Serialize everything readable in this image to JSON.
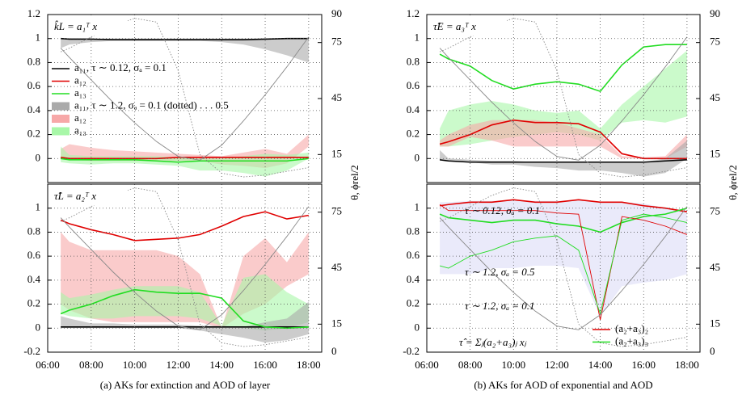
{
  "chart_data": [
    {
      "type": "line",
      "title": "k̂L = a₁ᵀ x",
      "xlim": [
        6,
        18.6
      ],
      "xticks": [
        6,
        8,
        10,
        12,
        14,
        16,
        18
      ],
      "ylim": [
        -0.2,
        1.2
      ],
      "yticks": [
        0,
        0.2,
        0.4,
        0.6,
        0.8,
        1,
        1.2
      ],
      "y2lim": [
        0,
        90
      ],
      "y2ticks": [
        15,
        45,
        75,
        90
      ],
      "y2label": "θ, ϕrel/2",
      "grid": true,
      "x": [
        6.6,
        7,
        8,
        9,
        10,
        11,
        12,
        13,
        14,
        15,
        16,
        17,
        18
      ],
      "series": [
        {
          "name": "a₁₁, τ ∼ 0.12, σₐ = 0.1",
          "color": "#000000",
          "values": [
            1,
            0.995,
            0.995,
            0.99,
            0.99,
            0.99,
            0.99,
            0.99,
            0.99,
            0.99,
            0.995,
            1,
            1
          ]
        },
        {
          "name": "a₁₂",
          "color": "#e00000",
          "values": [
            0.01,
            0,
            0,
            0,
            0,
            0,
            0.01,
            0.01,
            0.01,
            0.01,
            0.01,
            0.01,
            0.01
          ]
        },
        {
          "name": "a₁₃",
          "color": "#22dd22",
          "values": [
            0,
            -0.01,
            -0.01,
            -0.01,
            -0.01,
            -0.02,
            -0.03,
            -0.02,
            -0.02,
            -0.02,
            -0.02,
            -0.02,
            0
          ]
        },
        {
          "color": "#888888",
          "axis": "y2",
          "values": [
            72,
            67,
            55,
            43,
            32,
            22,
            14,
            12,
            20,
            33,
            47,
            62,
            78
          ]
        },
        {
          "color": "#888888",
          "axis": "y2",
          "dotted": true,
          "values": [
            70,
            72,
            78,
            84,
            88,
            86,
            60,
            15,
            5,
            3,
            4,
            6,
            8
          ]
        }
      ],
      "bands": [
        {
          "name": "a₁₁, τ ∼ 1.2, σₐ = 0.1 (dotted) . . . 0.5",
          "color": "#aaaaaa",
          "lower": [
            0.92,
            0.95,
            0.97,
            0.98,
            0.98,
            0.98,
            0.98,
            0.98,
            0.97,
            0.95,
            0.91,
            0.86,
            0.8
          ],
          "upper": [
            1,
            1,
            1,
            1,
            1,
            1,
            1,
            1,
            1,
            1,
            1,
            1,
            1
          ]
        },
        {
          "name": "a₁₂",
          "color": "#f7a8a8",
          "lower": [
            0,
            -0.01,
            -0.02,
            -0.02,
            -0.02,
            -0.02,
            -0.02,
            -0.02,
            -0.05,
            -0.06,
            -0.08,
            -0.04,
            0.1
          ],
          "upper": [
            0.08,
            0.12,
            0.09,
            0.07,
            0.06,
            0.05,
            0.04,
            0.03,
            0.02,
            0.05,
            0.08,
            0.04,
            0.2
          ]
        },
        {
          "name": "a₁₃",
          "color": "#a8f7a8",
          "lower": [
            -0.03,
            -0.04,
            -0.05,
            -0.04,
            -0.04,
            -0.05,
            -0.06,
            -0.1,
            -0.1,
            -0.12,
            -0.15,
            -0.1,
            0
          ],
          "upper": [
            0.1,
            0.03,
            0.02,
            0.02,
            0.02,
            0.02,
            0.01,
            0,
            0,
            0.02,
            0.04,
            0.03,
            0.05
          ]
        }
      ]
    },
    {
      "type": "line",
      "title": "τ̂L = a₂ᵀ x",
      "xlim": [
        6,
        18.6
      ],
      "xticks": [
        {
          "value": 6,
          "label": "06:00"
        },
        {
          "value": 8,
          "label": "08:00"
        },
        {
          "value": 10,
          "label": "10:00"
        },
        {
          "value": 12,
          "label": "12:00"
        },
        {
          "value": 14,
          "label": "14:00"
        },
        {
          "value": 16,
          "label": "16:00"
        },
        {
          "value": 18,
          "label": "18:00"
        }
      ],
      "ylim": [
        -0.2,
        1.2
      ],
      "yticks": [
        -0.2,
        0,
        0.2,
        0.4,
        0.6,
        0.8,
        1
      ],
      "y2lim": [
        0,
        90
      ],
      "y2ticks": [
        0,
        15,
        45,
        75
      ],
      "grid": true,
      "x": [
        6.6,
        7,
        8,
        9,
        10,
        11,
        12,
        13,
        14,
        15,
        16,
        17,
        18
      ],
      "series": [
        {
          "color": "#000000",
          "values": [
            0.01,
            0.01,
            0.01,
            0.01,
            0.01,
            0.01,
            0.01,
            0.01,
            0.01,
            0.01,
            0.01,
            0.01,
            0.01
          ]
        },
        {
          "color": "#e00000",
          "values": [
            0.9,
            0.87,
            0.82,
            0.78,
            0.73,
            0.74,
            0.75,
            0.78,
            0.85,
            0.93,
            0.97,
            0.91,
            0.94
          ]
        },
        {
          "color": "#22dd22",
          "values": [
            0.12,
            0.15,
            0.2,
            0.27,
            0.32,
            0.3,
            0.29,
            0.29,
            0.25,
            0.06,
            0.01,
            0,
            0.01
          ]
        },
        {
          "color": "#888888",
          "axis": "y2",
          "values": [
            72,
            67,
            55,
            43,
            32,
            22,
            14,
            12,
            20,
            33,
            47,
            62,
            78
          ]
        },
        {
          "color": "#888888",
          "axis": "y2",
          "dotted": true,
          "values": [
            70,
            72,
            78,
            84,
            88,
            86,
            60,
            15,
            5,
            3,
            4,
            6,
            8
          ]
        }
      ],
      "bands": [
        {
          "color": "#f7a8a8",
          "lower": [
            0.2,
            0.15,
            0.08,
            0.05,
            0.05,
            0.05,
            0.05,
            0.05,
            0,
            0.12,
            0.2,
            0.35,
            0.45
          ],
          "upper": [
            0.8,
            0.72,
            0.65,
            0.65,
            0.65,
            0.65,
            0.6,
            0.45,
            0,
            0.6,
            0.75,
            0.55,
            0.8
          ]
        },
        {
          "color": "#a8f7a8",
          "lower": [
            0.12,
            0.1,
            0.08,
            0.08,
            0.1,
            0.1,
            0.1,
            0.08,
            0.02,
            0,
            -0.02,
            0,
            0.05
          ],
          "upper": [
            0.3,
            0.25,
            0.28,
            0.32,
            0.35,
            0.35,
            0.35,
            0.3,
            0.02,
            0.42,
            0.45,
            0.3,
            0.2
          ]
        },
        {
          "color": "#aaaaaa",
          "lower": [
            0,
            0,
            0,
            0,
            0,
            0,
            0,
            -0.02,
            -0.05,
            -0.08,
            -0.12,
            -0.1,
            -0.05
          ],
          "upper": [
            0.1,
            0.08,
            0.04,
            0.04,
            0.03,
            0.03,
            0.03,
            0.02,
            0.02,
            0.01,
            0.05,
            0.08,
            0.22
          ]
        }
      ]
    },
    {
      "type": "line",
      "title": "τ̂E = a₃ᵀ x",
      "xlim": [
        6,
        18.6
      ],
      "xticks": [
        6,
        8,
        10,
        12,
        14,
        16,
        18
      ],
      "ylim": [
        -0.2,
        1.2
      ],
      "yticks": [
        0,
        0.2,
        0.4,
        0.6,
        0.8,
        1,
        1.2
      ],
      "y2lim": [
        0,
        90
      ],
      "y2ticks": [
        15,
        45,
        75,
        90
      ],
      "y2label": "θ, ϕrel/2",
      "grid": true,
      "x": [
        6.6,
        7,
        8,
        9,
        10,
        11,
        12,
        13,
        14,
        15,
        16,
        17,
        18
      ],
      "series": [
        {
          "color": "#000000",
          "values": [
            -0.01,
            -0.02,
            -0.03,
            -0.03,
            -0.03,
            -0.03,
            -0.03,
            -0.03,
            -0.03,
            -0.03,
            -0.03,
            -0.02,
            -0.01
          ]
        },
        {
          "color": "#e00000",
          "values": [
            0.12,
            0.14,
            0.2,
            0.28,
            0.32,
            0.3,
            0.3,
            0.29,
            0.22,
            0.04,
            0,
            0,
            0
          ]
        },
        {
          "color": "#22dd22",
          "values": [
            0.87,
            0.83,
            0.77,
            0.65,
            0.58,
            0.62,
            0.64,
            0.62,
            0.56,
            0.78,
            0.93,
            0.95,
            0.95
          ]
        },
        {
          "color": "#888888",
          "axis": "y2",
          "values": [
            72,
            67,
            55,
            43,
            32,
            22,
            14,
            12,
            20,
            33,
            47,
            62,
            78
          ]
        },
        {
          "color": "#888888",
          "axis": "y2",
          "dotted": true,
          "values": [
            70,
            72,
            78,
            84,
            88,
            86,
            60,
            15,
            5,
            3,
            4,
            6,
            8
          ]
        }
      ],
      "bands": [
        {
          "color": "#a8f7a8",
          "lower": [
            0.1,
            0.1,
            0.12,
            0.15,
            0.18,
            0.2,
            0.22,
            0.2,
            0.15,
            0.3,
            0.32,
            0.3,
            0.35
          ],
          "upper": [
            0.25,
            0.4,
            0.45,
            0.48,
            0.45,
            0.4,
            0.38,
            0.4,
            0.25,
            0.45,
            0.6,
            0.75,
            0.9
          ]
        },
        {
          "color": "#f7a8a8",
          "lower": [
            0.1,
            0.1,
            0.18,
            0.15,
            0.1,
            0.1,
            0.1,
            0.1,
            0.1,
            0,
            0,
            0,
            0.1
          ],
          "upper": [
            0.15,
            0.2,
            0.28,
            0.32,
            0.32,
            0.32,
            0.3,
            0.25,
            0.2,
            0.02,
            0.01,
            0.02,
            0.2
          ]
        },
        {
          "color": "#aaaaaa",
          "lower": [
            0,
            -0.02,
            -0.03,
            -0.05,
            -0.05,
            -0.07,
            -0.08,
            -0.1,
            -0.1,
            -0.12,
            -0.15,
            -0.12,
            0
          ],
          "upper": [
            0.07,
            0,
            -0.01,
            -0.02,
            -0.02,
            -0.03,
            -0.03,
            -0.03,
            -0.03,
            -0.03,
            -0.03,
            0,
            0.15
          ]
        }
      ]
    },
    {
      "type": "line",
      "xlim": [
        6,
        18.6
      ],
      "xticks": [
        {
          "value": 6,
          "label": "06:00"
        },
        {
          "value": 8,
          "label": "08:00"
        },
        {
          "value": 10,
          "label": "10:00"
        },
        {
          "value": 12,
          "label": "12:00"
        },
        {
          "value": 14,
          "label": "14:00"
        },
        {
          "value": 16,
          "label": "16:00"
        },
        {
          "value": 18,
          "label": "18:00"
        }
      ],
      "ylim": [
        -0.2,
        1.2
      ],
      "yticks": [
        -0.2,
        0,
        0.2,
        0.4,
        0.6,
        0.8,
        1
      ],
      "y2lim": [
        0,
        90
      ],
      "y2ticks": [
        0,
        15,
        45,
        75
      ],
      "grid": true,
      "annotations": [
        "τ ∼ 0.12, σₐ = 0.1",
        "τ ∼ 1.2, σₐ = 0.5",
        "τ ∼ 1.2, σₐ = 0.1",
        "τ̂ = Σⱼ(a₂+a₃)ⱼ xⱼ"
      ],
      "x": [
        6.6,
        7,
        8,
        9,
        10,
        11,
        12,
        13,
        14,
        15,
        16,
        17,
        18
      ],
      "series": [
        {
          "name": "(a₂+a₃)₂",
          "color": "#e00000",
          "values": [
            1.02,
            1.03,
            1.05,
            1.05,
            1.07,
            1.05,
            1.05,
            1.07,
            1.05,
            1.05,
            1.02,
            1,
            0.97
          ]
        },
        {
          "name": "(a₂+a₃)₃",
          "color": "#22dd22",
          "values": [
            0.95,
            0.92,
            0.9,
            0.88,
            0.9,
            0.9,
            0.87,
            0.85,
            0.8,
            0.88,
            0.93,
            0.95,
            1
          ]
        },
        {
          "color": "#e00000",
          "thin": true,
          "values": [
            1.03,
            0.98,
            0.98,
            0.98,
            0.98,
            0.98,
            0.96,
            0.95,
            0.07,
            0.93,
            0.9,
            0.85,
            0.78
          ]
        },
        {
          "color": "#22dd22",
          "thin": true,
          "values": [
            0.52,
            0.5,
            0.6,
            0.65,
            0.72,
            0.75,
            0.77,
            0.65,
            0.12,
            0.9,
            0.95,
            0.92,
            0.88
          ]
        },
        {
          "color": "#888888",
          "axis": "y2",
          "values": [
            72,
            67,
            55,
            43,
            32,
            22,
            14,
            12,
            20,
            33,
            47,
            62,
            78
          ]
        },
        {
          "color": "#888888",
          "axis": "y2",
          "dotted": true,
          "values": [
            70,
            72,
            78,
            84,
            88,
            86,
            60,
            15,
            5,
            3,
            4,
            6,
            8
          ]
        }
      ],
      "bands": [
        {
          "color": "#dcdcf6",
          "lower": [
            0.45,
            0.45,
            0.45,
            0.5,
            0.5,
            0.52,
            0.52,
            0.5,
            0.1,
            0.35,
            0.38,
            0.4,
            0.45
          ],
          "upper": [
            1.05,
            1.05,
            1.06,
            1.06,
            1.07,
            1.06,
            1.06,
            1.07,
            1.05,
            1.05,
            1.04,
            1,
            0.98
          ]
        }
      ]
    }
  ],
  "captions": [
    "(a) AKs for extinction and AOD of layer",
    "(b) AKs for AOD of exponential and AOD"
  ]
}
